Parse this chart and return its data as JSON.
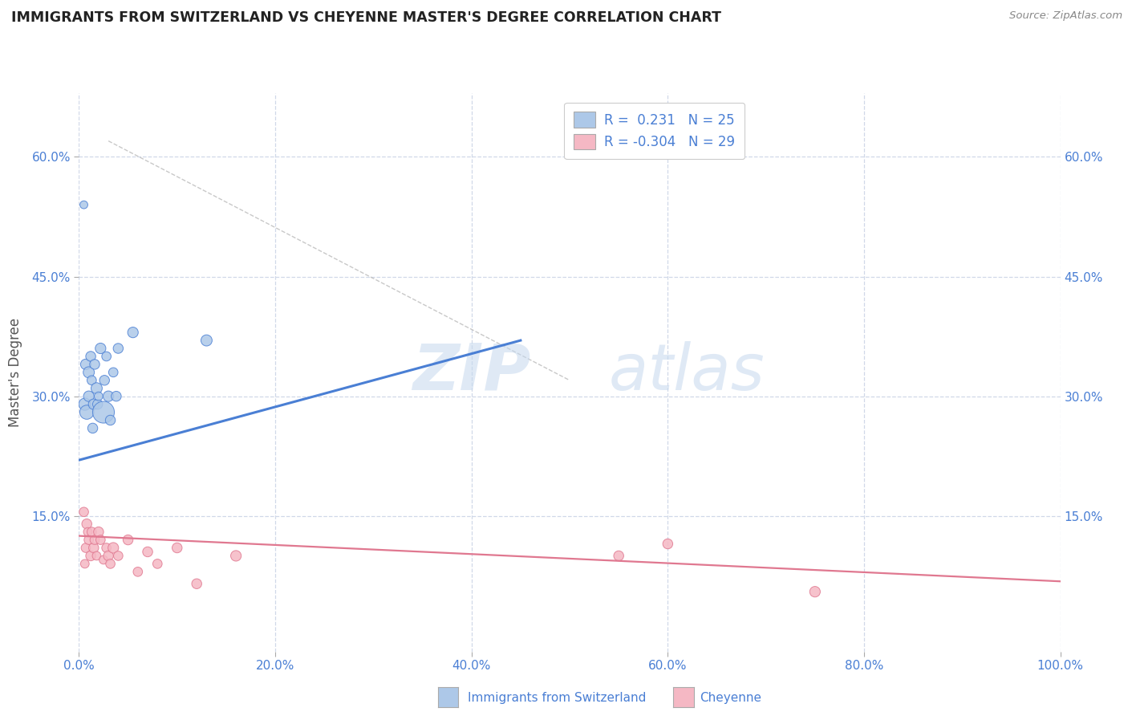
{
  "title": "IMMIGRANTS FROM SWITZERLAND VS CHEYENNE MASTER'S DEGREE CORRELATION CHART",
  "source_text": "Source: ZipAtlas.com",
  "ylabel": "Master's Degree",
  "xlim": [
    0.0,
    1.0
  ],
  "ylim": [
    -0.02,
    0.68
  ],
  "xtick_labels": [
    "0.0%",
    "20.0%",
    "40.0%",
    "60.0%",
    "80.0%",
    "100.0%"
  ],
  "xtick_positions": [
    0.0,
    0.2,
    0.4,
    0.6,
    0.8,
    1.0
  ],
  "ytick_labels": [
    "15.0%",
    "30.0%",
    "45.0%",
    "60.0%"
  ],
  "ytick_positions": [
    0.15,
    0.3,
    0.45,
    0.6
  ],
  "watermark_zip": "ZIP",
  "watermark_atlas": "atlas",
  "blue_r": 0.231,
  "blue_n": 25,
  "pink_r": -0.304,
  "pink_n": 29,
  "blue_color": "#adc8e8",
  "blue_line_color": "#4a7fd4",
  "pink_color": "#f5b8c4",
  "pink_line_color": "#e07890",
  "title_color": "#222222",
  "source_color": "#888888",
  "axis_label_color": "#555555",
  "tick_color": "#4a7fd4",
  "grid_color": "#d0d8e8",
  "background_color": "#ffffff",
  "blue_scatter_x": [
    0.005,
    0.006,
    0.007,
    0.008,
    0.01,
    0.01,
    0.012,
    0.013,
    0.014,
    0.015,
    0.016,
    0.018,
    0.019,
    0.02,
    0.022,
    0.025,
    0.026,
    0.028,
    0.03,
    0.032,
    0.035,
    0.038,
    0.04,
    0.055,
    0.13
  ],
  "blue_scatter_y": [
    0.54,
    0.29,
    0.34,
    0.28,
    0.33,
    0.3,
    0.35,
    0.32,
    0.26,
    0.29,
    0.34,
    0.31,
    0.29,
    0.3,
    0.36,
    0.28,
    0.32,
    0.35,
    0.3,
    0.27,
    0.33,
    0.3,
    0.36,
    0.38,
    0.37
  ],
  "blue_scatter_size": [
    50,
    120,
    90,
    160,
    100,
    90,
    80,
    70,
    80,
    90,
    80,
    100,
    80,
    60,
    90,
    380,
    80,
    70,
    90,
    80,
    70,
    80,
    80,
    90,
    100
  ],
  "pink_scatter_x": [
    0.005,
    0.006,
    0.007,
    0.008,
    0.009,
    0.01,
    0.012,
    0.013,
    0.015,
    0.016,
    0.018,
    0.02,
    0.022,
    0.025,
    0.028,
    0.03,
    0.032,
    0.035,
    0.04,
    0.05,
    0.06,
    0.07,
    0.08,
    0.1,
    0.12,
    0.16,
    0.55,
    0.6,
    0.75
  ],
  "pink_scatter_y": [
    0.155,
    0.09,
    0.11,
    0.14,
    0.13,
    0.12,
    0.1,
    0.13,
    0.11,
    0.12,
    0.1,
    0.13,
    0.12,
    0.095,
    0.11,
    0.1,
    0.09,
    0.11,
    0.1,
    0.12,
    0.08,
    0.105,
    0.09,
    0.11,
    0.065,
    0.1,
    0.1,
    0.115,
    0.055
  ],
  "pink_scatter_size": [
    70,
    60,
    70,
    80,
    60,
    70,
    80,
    70,
    80,
    70,
    60,
    80,
    70,
    60,
    70,
    80,
    70,
    90,
    70,
    80,
    70,
    80,
    70,
    80,
    80,
    90,
    80,
    80,
    90
  ],
  "blue_trendline_x": [
    0.0,
    0.45
  ],
  "blue_trendline_y": [
    0.22,
    0.37
  ],
  "dashed_line_x": [
    0.03,
    0.5
  ],
  "dashed_line_y": [
    0.62,
    0.32
  ],
  "pink_trendline_x": [
    0.0,
    1.0
  ],
  "pink_trendline_y": [
    0.125,
    0.068
  ]
}
